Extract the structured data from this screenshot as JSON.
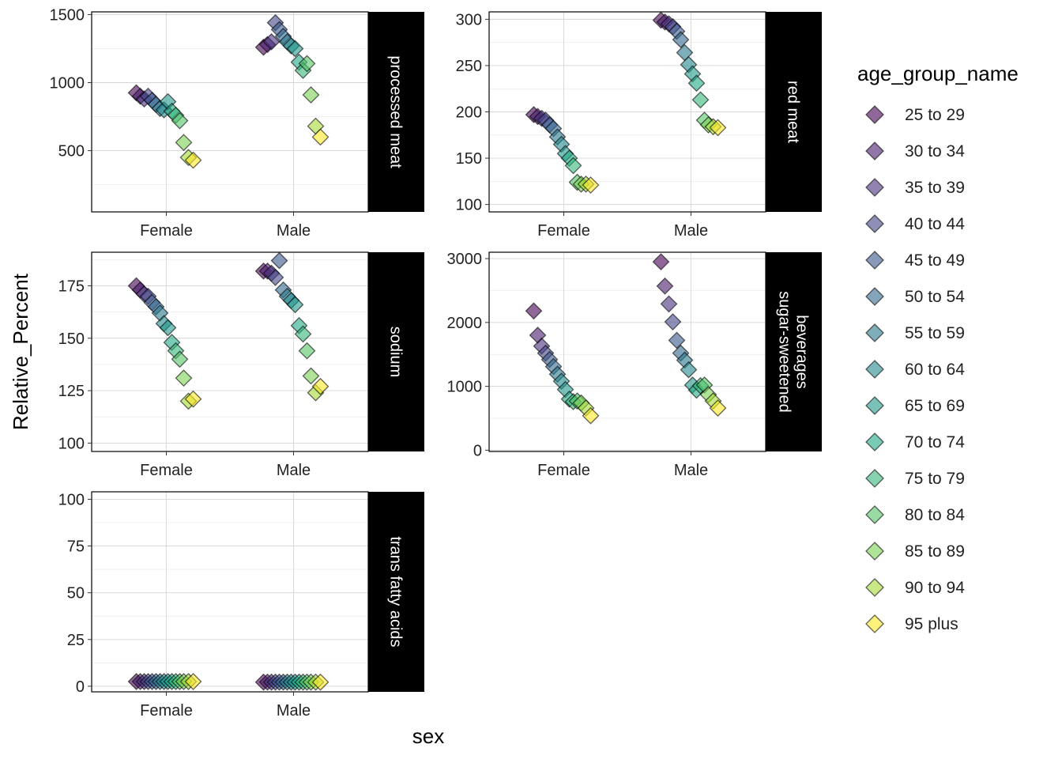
{
  "chart_data": {
    "type": "scatter",
    "marker": "diamond",
    "xlabel": "sex",
    "ylabel": "Relative_Percent",
    "legend_title": "age_group_name",
    "legend_position": "right",
    "grid": true,
    "categories": [
      "Female",
      "Male"
    ],
    "age_groups": [
      "25 to 29",
      "30 to 34",
      "35 to 39",
      "40 to 44",
      "45 to 49",
      "50 to 54",
      "55 to 59",
      "60 to 64",
      "65 to 69",
      "70 to 74",
      "75 to 79",
      "80 to 84",
      "85 to 89",
      "90 to 94",
      "95 plus"
    ],
    "colors": [
      "#440154",
      "#481a6c",
      "#472f7d",
      "#414487",
      "#39568c",
      "#31688e",
      "#2a788e",
      "#23888e",
      "#1f988b",
      "#22a884",
      "#35b779",
      "#54c568",
      "#7ad151",
      "#a5db36",
      "#fde725"
    ],
    "panels": [
      {
        "name": "processed meat",
        "ylim": [
          50,
          1520
        ],
        "yticks": [
          500,
          1000,
          1500
        ],
        "female": [
          925,
          900,
          880,
          900,
          870,
          840,
          810,
          800,
          860,
          790,
          760,
          720,
          560,
          450,
          430
        ],
        "male": [
          1260,
          1280,
          1300,
          1440,
          1390,
          1340,
          1300,
          1270,
          1250,
          1150,
          1090,
          1140,
          910,
          680,
          600
        ]
      },
      {
        "name": "red meat",
        "ylim": [
          92,
          308
        ],
        "yticks": [
          100,
          150,
          200,
          250,
          300
        ],
        "female": [
          197,
          195,
          193,
          191,
          186,
          182,
          173,
          165,
          155,
          150,
          142,
          124,
          122,
          122,
          121
        ],
        "male": [
          299,
          297,
          295,
          292,
          287,
          278,
          264,
          251,
          241,
          231,
          213,
          191,
          186,
          184,
          183
        ]
      },
      {
        "name": "sodium",
        "ylim": [
          96,
          191
        ],
        "yticks": [
          100,
          125,
          150,
          175
        ],
        "female": [
          175,
          173,
          171,
          170,
          167,
          165,
          162,
          157,
          155,
          148,
          144,
          140,
          131,
          120,
          121
        ],
        "male": [
          182,
          182,
          181,
          179,
          187,
          173,
          170,
          168,
          166,
          156,
          152,
          144,
          132,
          124,
          127
        ]
      },
      {
        "name": "sugar-sweetened beverages",
        "ylim": [
          -20,
          3100
        ],
        "yticks": [
          0,
          1000,
          2000,
          3000
        ],
        "female": [
          2180,
          1800,
          1630,
          1520,
          1420,
          1310,
          1190,
          1080,
          950,
          800,
          760,
          770,
          740,
          660,
          540
        ],
        "male": [
          2950,
          2570,
          2290,
          2010,
          1720,
          1520,
          1410,
          1260,
          1020,
          940,
          1010,
          1020,
          870,
          770,
          660
        ]
      },
      {
        "name": "trans fatty acids",
        "ylim": [
          -3,
          104
        ],
        "yticks": [
          0,
          25,
          50,
          75,
          100
        ],
        "female": [
          2.5,
          2.5,
          2.5,
          2.5,
          2.5,
          2.5,
          2.5,
          2.5,
          2.5,
          2.5,
          2.5,
          2.5,
          2.5,
          2.5,
          2.5
        ],
        "male": [
          2.2,
          2.2,
          2.2,
          2.2,
          2.2,
          2.2,
          2.2,
          2.2,
          2.2,
          2.2,
          2.2,
          2.2,
          2.2,
          2.2,
          2.2
        ]
      }
    ]
  }
}
